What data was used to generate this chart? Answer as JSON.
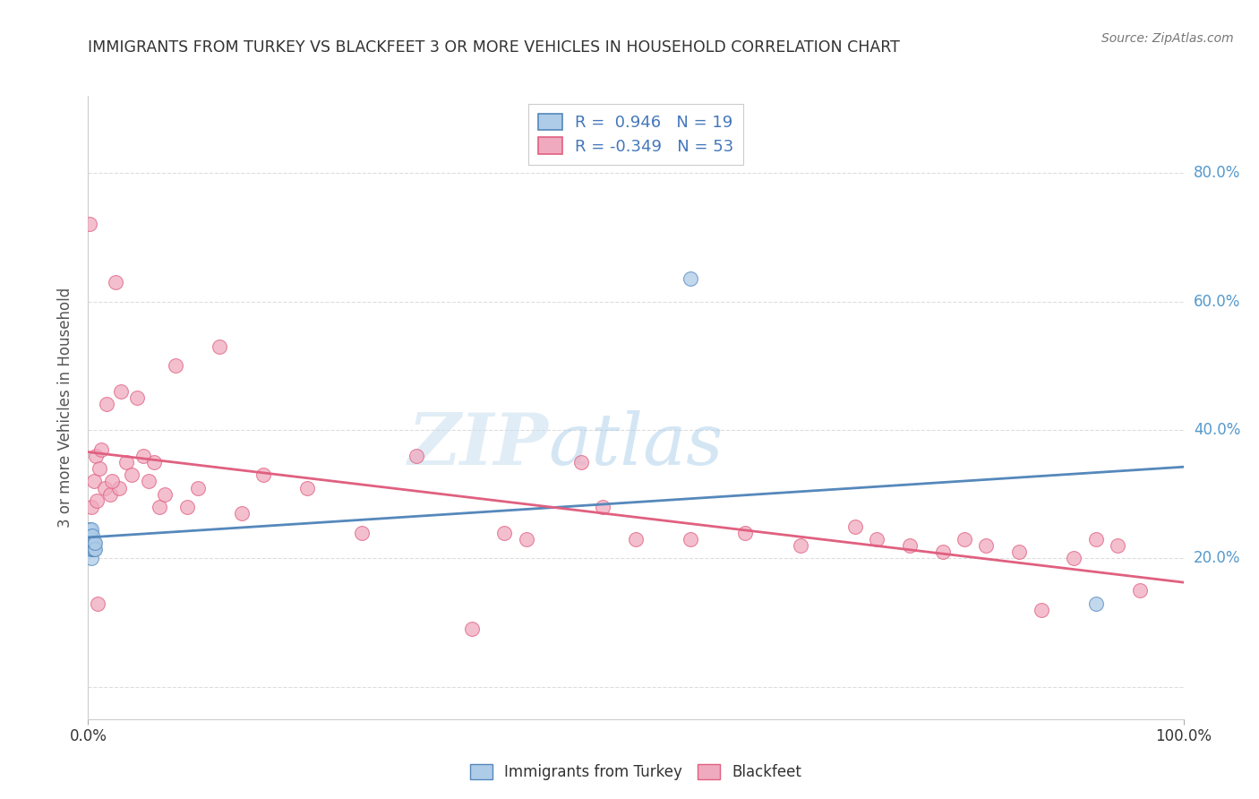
{
  "title": "IMMIGRANTS FROM TURKEY VS BLACKFEET 3 OR MORE VEHICLES IN HOUSEHOLD CORRELATION CHART",
  "source": "Source: ZipAtlas.com",
  "ylabel": "3 or more Vehicles in Household",
  "y_ticks": [
    0.0,
    0.2,
    0.4,
    0.6,
    0.8
  ],
  "y_tick_labels": [
    "",
    "20.0%",
    "40.0%",
    "60.0%",
    "80.0%"
  ],
  "x_range": [
    0.0,
    1.0
  ],
  "y_range": [
    -0.05,
    0.92
  ],
  "legend_r_blue": "0.946",
  "legend_n_blue": "19",
  "legend_r_pink": "-0.349",
  "legend_n_pink": "53",
  "blue_color": "#aecce8",
  "pink_color": "#f0aabf",
  "blue_line_color": "#5588bb",
  "pink_line_color": "#e06080",
  "watermark_zip": "ZIP",
  "watermark_atlas": "atlas",
  "blue_scatter_x": [
    0.001,
    0.001,
    0.001,
    0.002,
    0.002,
    0.002,
    0.003,
    0.003,
    0.003,
    0.003,
    0.004,
    0.004,
    0.004,
    0.005,
    0.005,
    0.006,
    0.006,
    0.55,
    0.92
  ],
  "blue_scatter_y": [
    0.225,
    0.235,
    0.245,
    0.215,
    0.225,
    0.235,
    0.2,
    0.215,
    0.23,
    0.245,
    0.215,
    0.225,
    0.235,
    0.215,
    0.225,
    0.215,
    0.225,
    0.635,
    0.13
  ],
  "pink_scatter_x": [
    0.001,
    0.003,
    0.005,
    0.007,
    0.008,
    0.01,
    0.012,
    0.015,
    0.017,
    0.02,
    0.025,
    0.028,
    0.03,
    0.035,
    0.04,
    0.045,
    0.05,
    0.055,
    0.06,
    0.065,
    0.07,
    0.08,
    0.09,
    0.1,
    0.12,
    0.14,
    0.16,
    0.2,
    0.25,
    0.3,
    0.35,
    0.38,
    0.4,
    0.45,
    0.47,
    0.5,
    0.55,
    0.6,
    0.65,
    0.7,
    0.72,
    0.75,
    0.78,
    0.8,
    0.82,
    0.85,
    0.87,
    0.9,
    0.92,
    0.94,
    0.96,
    0.009,
    0.022
  ],
  "pink_scatter_y": [
    0.72,
    0.28,
    0.32,
    0.36,
    0.29,
    0.34,
    0.37,
    0.31,
    0.44,
    0.3,
    0.63,
    0.31,
    0.46,
    0.35,
    0.33,
    0.45,
    0.36,
    0.32,
    0.35,
    0.28,
    0.3,
    0.5,
    0.28,
    0.31,
    0.53,
    0.27,
    0.33,
    0.31,
    0.24,
    0.36,
    0.09,
    0.24,
    0.23,
    0.35,
    0.28,
    0.23,
    0.23,
    0.24,
    0.22,
    0.25,
    0.23,
    0.22,
    0.21,
    0.23,
    0.22,
    0.21,
    0.12,
    0.2,
    0.23,
    0.22,
    0.15,
    0.13,
    0.32
  ],
  "background_color": "#ffffff",
  "grid_color": "#dddddd"
}
